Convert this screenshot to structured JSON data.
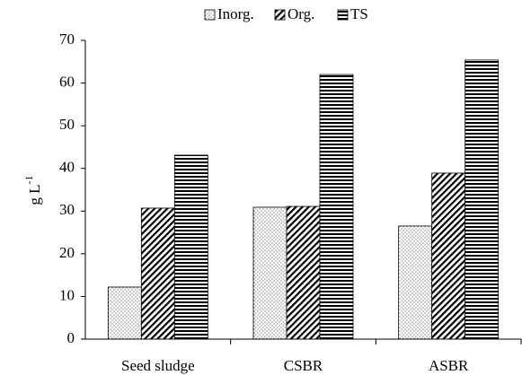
{
  "chart_data": {
    "type": "bar",
    "ylabel": {
      "text": "g L",
      "superscript": "-1"
    },
    "categories": [
      "Seed sludge",
      "CSBR",
      "ASBR"
    ],
    "series": [
      {
        "name": "Inorg.",
        "color": "#000000",
        "pattern": "dots",
        "values": [
          12.2,
          30.9,
          26.5
        ]
      },
      {
        "name": "Org.",
        "color": "#000000",
        "pattern": "diagonal",
        "values": [
          30.7,
          31.1,
          38.9
        ]
      },
      {
        "name": "TS",
        "color": "#000000",
        "pattern": "horizontal",
        "values": [
          43.1,
          62.0,
          65.4
        ]
      }
    ],
    "ylim": [
      0,
      70
    ],
    "yticks": [
      0,
      10,
      20,
      30,
      40,
      50,
      60,
      70
    ],
    "grid": false,
    "legend": "top"
  }
}
